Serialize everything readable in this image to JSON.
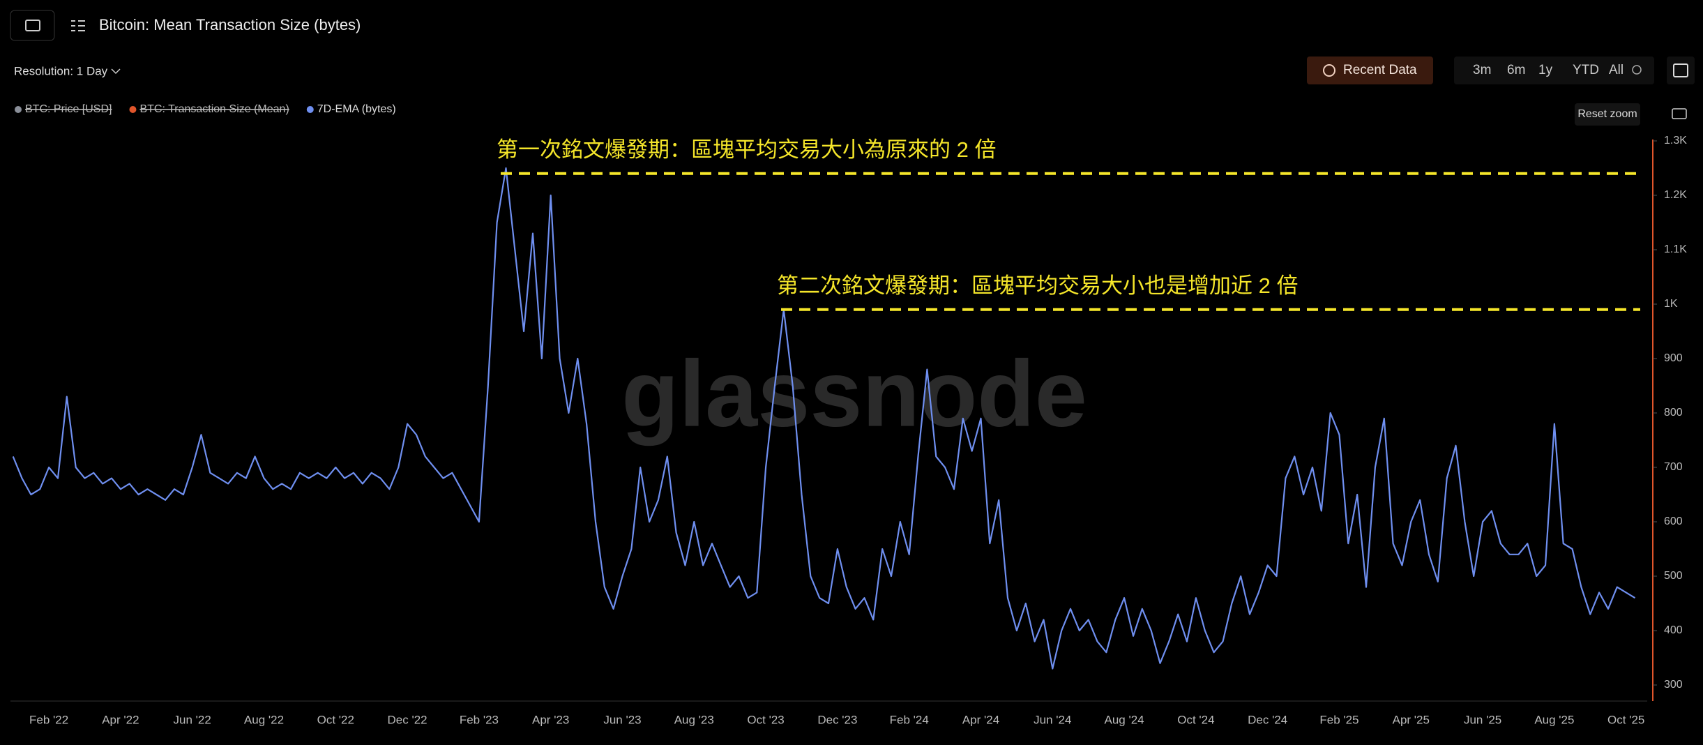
{
  "header": {
    "title": "Bitcoin: Mean Transaction Size (bytes)",
    "resolution": "Resolution: 1 Day",
    "recent": "Recent Data",
    "ranges": [
      "3m",
      "6m",
      "1y",
      "YTD",
      "All"
    ],
    "reset_zoom": "Reset zoom",
    "watermark": "glassnode"
  },
  "legend": [
    {
      "name": "BTC: Price [USD]",
      "color": "#8a8f99",
      "hidden": true
    },
    {
      "name": "BTC: Transaction Size (Mean)",
      "color": "#e0552b",
      "hidden": true
    },
    {
      "name": "7D-EMA (bytes)",
      "color": "#6f8ff0",
      "hidden": false
    }
  ],
  "chart_data": {
    "type": "line",
    "categories": [
      null,
      null,
      null,
      null,
      "Feb '22",
      null,
      null,
      null,
      null,
      null,
      null,
      null,
      "Apr '22",
      null,
      null,
      null,
      null,
      null,
      null,
      null,
      "Jun '22",
      null,
      null,
      null,
      null,
      null,
      null,
      null,
      "Aug '22",
      null,
      null,
      null,
      null,
      null,
      null,
      null,
      "Oct '22",
      null,
      null,
      null,
      null,
      null,
      null,
      null,
      "Dec '22",
      null,
      null,
      null,
      null,
      null,
      null,
      null,
      "Feb '23",
      null,
      null,
      null,
      null,
      null,
      null,
      null,
      "Apr '23",
      null,
      null,
      null,
      null,
      null,
      null,
      null,
      "Jun '23",
      null,
      null,
      null,
      null,
      null,
      null,
      null,
      "Aug '23",
      null,
      null,
      null,
      null,
      null,
      null,
      null,
      "Oct '23",
      null,
      null,
      null,
      null,
      null,
      null,
      null,
      "Dec '23",
      null,
      null,
      null,
      null,
      null,
      null,
      null,
      "Feb '24",
      null,
      null,
      null,
      null,
      null,
      null,
      null,
      "Apr '24",
      null,
      null,
      null,
      null,
      null,
      null,
      null,
      "Jun '24",
      null,
      null,
      null,
      null,
      null,
      null,
      null,
      "Aug '24",
      null,
      null,
      null,
      null,
      null,
      null,
      null,
      "Oct '24",
      null,
      null,
      null,
      null,
      null,
      null,
      null,
      "Dec '24",
      null,
      null,
      null,
      null,
      null,
      null,
      null,
      "Feb '25",
      null,
      null,
      null,
      null,
      null,
      null,
      null,
      "Apr '25",
      null,
      null,
      null,
      null,
      null,
      null,
      null,
      "Jun '25",
      null,
      null,
      null,
      null,
      null,
      null,
      null,
      "Aug '25",
      null,
      null,
      null,
      null,
      null,
      null,
      null,
      "Oct '25",
      null
    ],
    "series": [
      {
        "name": "7D-EMA (bytes)",
        "color": "#6f8ff0",
        "values": [
          720,
          680,
          650,
          660,
          700,
          680,
          830,
          700,
          680,
          690,
          670,
          680,
          660,
          670,
          650,
          660,
          650,
          640,
          660,
          650,
          700,
          760,
          690,
          680,
          670,
          690,
          680,
          720,
          680,
          660,
          670,
          660,
          690,
          680,
          690,
          680,
          700,
          680,
          690,
          670,
          690,
          680,
          660,
          700,
          780,
          760,
          720,
          700,
          680,
          690,
          660,
          630,
          600,
          850,
          1150,
          1250,
          1100,
          950,
          1130,
          900,
          1200,
          900,
          800,
          900,
          780,
          600,
          480,
          440,
          500,
          550,
          700,
          600,
          640,
          720,
          580,
          520,
          600,
          520,
          560,
          520,
          480,
          500,
          460,
          470,
          700,
          850,
          990,
          850,
          650,
          500,
          460,
          450,
          550,
          480,
          440,
          460,
          420,
          550,
          500,
          600,
          540,
          720,
          880,
          720,
          700,
          660,
          790,
          730,
          790,
          560,
          640,
          460,
          400,
          450,
          380,
          420,
          330,
          400,
          440,
          400,
          420,
          380,
          360,
          420,
          460,
          390,
          440,
          400,
          340,
          380,
          430,
          380,
          460,
          400,
          360,
          380,
          450,
          500,
          430,
          470,
          520,
          500,
          680,
          720,
          650,
          700,
          620,
          800,
          760,
          560,
          650,
          480,
          700,
          790,
          560,
          520,
          600,
          640,
          540,
          490,
          680,
          740,
          600,
          500,
          600,
          620,
          560,
          540,
          540,
          560,
          500,
          520,
          780,
          560,
          550,
          480,
          430,
          470,
          440,
          480,
          470,
          460
        ]
      }
    ],
    "ylim": [
      270,
      1320
    ],
    "yticks": [
      300,
      400,
      500,
      600,
      700,
      800,
      900,
      {
        "value": 1000,
        "label": "1K"
      },
      {
        "value": 1100,
        "label": "1.1K"
      },
      {
        "value": 1200,
        "label": "1.2K"
      },
      {
        "value": 1300,
        "label": "1.3K"
      }
    ],
    "annotations": [
      {
        "text": "第一次銘文爆發期：區塊平均交易大小為原來的 2 倍",
        "value": 1240
      },
      {
        "text": "第二次銘文爆發期：區塊平均交易大小也是增加近 2 倍",
        "value": 990
      }
    ]
  }
}
